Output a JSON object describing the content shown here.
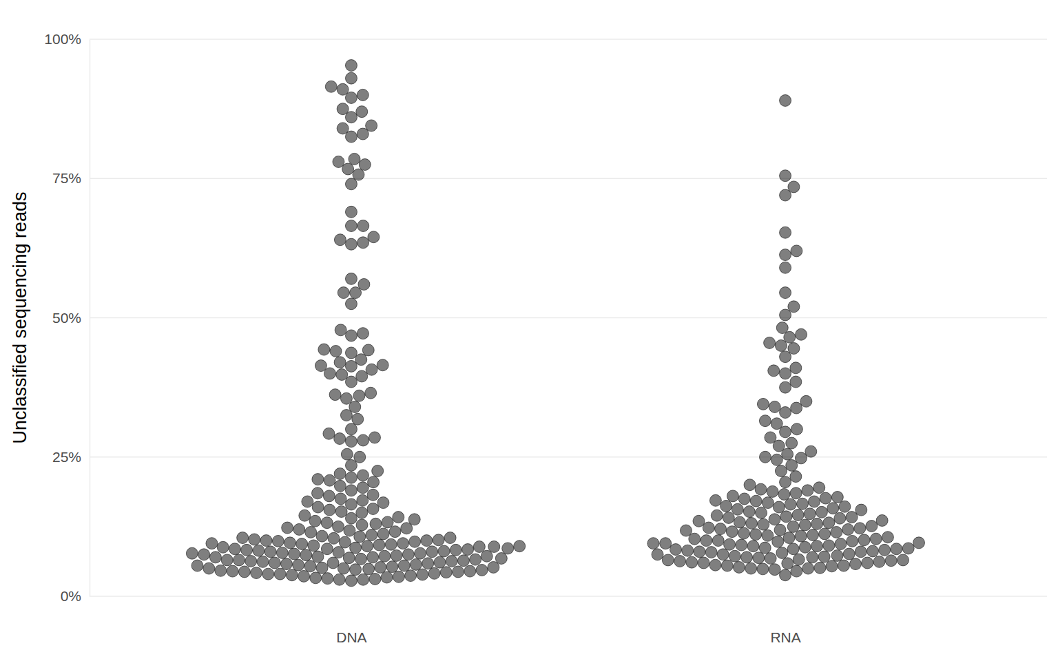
{
  "chart_data": {
    "type": "beeswarm",
    "y_label": "Unclassified sequencing reads",
    "categories": [
      "DNA",
      "RNA"
    ],
    "values": [
      [
        95.3,
        93,
        91.5,
        91,
        90,
        89.5,
        87.5,
        87,
        86,
        84.5,
        84,
        83,
        82.5,
        78.5,
        78,
        77.5,
        76.7,
        75.7,
        74,
        69,
        66.5,
        66.5,
        64.5,
        64,
        63.5,
        63.2,
        57,
        56,
        54.5,
        54.5,
        52.5,
        47.8,
        47.2,
        46.8,
        44.3,
        44.2,
        44,
        43.7,
        42.5,
        42,
        41.5,
        41.4,
        41.3,
        40.7,
        40,
        39.8,
        39.5,
        38.5,
        36.5,
        36.2,
        36,
        35.5,
        34,
        32.5,
        31.8,
        30,
        29.2,
        28.5,
        28.3,
        28,
        27.8,
        25.5,
        25,
        23.5,
        22.5,
        22,
        21.7,
        21,
        20.8,
        20.5,
        19.5,
        19,
        18.5,
        18,
        17.5,
        17.2,
        17,
        16.5,
        16,
        15.5,
        15.2,
        15,
        14.5,
        14,
        13.8,
        13.5,
        13.2,
        13,
        12.5,
        12.2,
        12,
        11.8,
        11.5,
        11,
        10.8,
        10.5,
        10.5,
        10.2,
        10,
        10,
        9.8,
        9.7,
        9.5,
        9.5,
        9.2,
        9,
        9,
        8.8,
        8.7,
        8.5,
        8.5,
        8.3,
        8.2,
        8,
        8,
        7.8,
        7.7,
        7.5,
        7.5,
        7.3,
        7.2,
        7,
        7,
        6.8,
        6.7,
        6.5,
        6.5,
        6.3,
        6.2,
        6,
        6,
        5.8,
        5.7,
        5.5,
        5.5,
        5.3,
        5.2,
        5,
        5,
        4.8,
        4.7,
        4.5,
        4.5,
        4.3,
        4.2,
        4,
        4,
        3.8,
        3.7,
        3.5,
        3.3,
        3.2,
        3,
        3,
        2.8,
        3.1,
        3.4,
        3.6,
        3.9,
        4.1,
        4.4,
        4.6,
        4.9,
        5.1,
        5.4,
        5.6,
        5.9,
        6.1,
        6.4,
        6.6,
        6.9,
        7.1,
        7.4,
        7.6,
        7.9,
        8.1,
        8.4,
        8.6,
        8.9,
        9.1,
        9.4,
        9.6,
        9.9,
        10.1,
        10.4,
        10.7,
        11.2,
        11.6,
        12.3,
        12.8,
        13.3,
        14.2,
        15.7,
        16.8,
        18.2,
        19.8,
        21.3,
        6.3,
        7.2,
        8.3,
        9.3,
        5.2,
        4.4,
        7.7,
        8.9
      ],
      [
        89,
        75.5,
        73.5,
        72,
        65.3,
        62,
        61.3,
        59,
        54.5,
        52,
        50.5,
        48.2,
        47,
        46.5,
        45.5,
        45,
        44.5,
        43,
        41,
        40.5,
        40,
        38.5,
        37.5,
        35,
        34.5,
        34,
        33.8,
        33,
        31.5,
        31,
        30,
        29.5,
        28.5,
        27.5,
        27,
        26,
        25.5,
        25,
        24.8,
        24.5,
        23.5,
        22.5,
        21.5,
        20.5,
        20,
        19.5,
        19,
        18.5,
        18.3,
        18,
        17.8,
        17.5,
        17.2,
        17,
        16.8,
        16.5,
        16.2,
        16,
        15.8,
        15.5,
        15.2,
        15,
        14.8,
        14.5,
        14.2,
        14,
        13.8,
        13.5,
        13.2,
        13,
        12.8,
        12.5,
        12.2,
        12,
        11.8,
        11.5,
        11.2,
        11,
        10.8,
        10.5,
        10.3,
        10,
        10,
        9.8,
        9.5,
        9.5,
        9.2,
        9,
        9,
        8.8,
        8.5,
        8.5,
        8.2,
        8,
        8,
        7.8,
        7.5,
        7.5,
        7.2,
        7,
        7,
        6.8,
        6.5,
        6.5,
        6.2,
        6,
        6,
        5.8,
        5.5,
        5.5,
        5.2,
        5,
        5,
        4.8,
        4.5,
        3.8,
        5.1,
        5.6,
        6.1,
        6.6,
        7.1,
        7.6,
        8.1,
        8.6,
        9.1,
        9.6,
        10.1,
        10.6,
        11.1,
        11.6,
        12.1,
        12.6,
        13.1,
        13.6,
        14.1,
        14.6,
        15.1,
        15.6,
        16.1,
        16.6,
        17.1,
        17.6,
        6.3,
        7.3,
        8.3,
        9.3,
        10.3,
        11.3,
        12.3,
        13.3,
        14.3,
        5.4,
        6.9,
        8.7,
        9.9,
        10.9,
        11.9,
        12.9,
        7.9,
        8.4,
        9.4,
        6.4,
        5.9,
        4.9,
        18.8,
        19.2
      ]
    ],
    "color": "#000000",
    "ylim": [
      0,
      100
    ],
    "yticks": [
      {
        "value": 0,
        "label": "0%"
      },
      {
        "value": 25,
        "label": "25%"
      },
      {
        "value": 50,
        "label": "50%"
      },
      {
        "value": 75,
        "label": "75%"
      },
      {
        "value": 100,
        "label": "100%"
      }
    ],
    "grid": true
  }
}
